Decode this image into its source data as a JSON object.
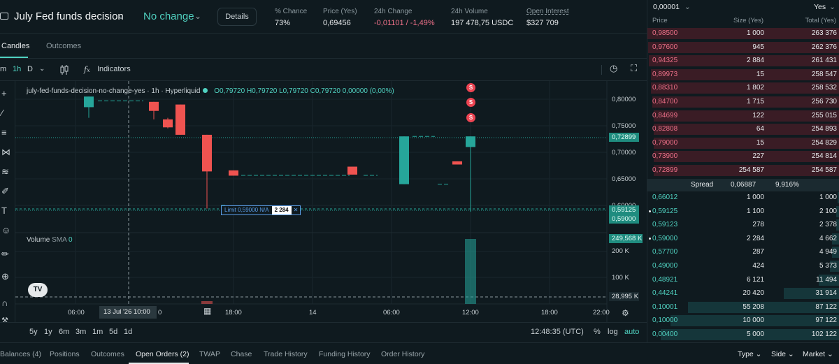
{
  "header": {
    "market_title": "July Fed funds decision",
    "outcome": "No change",
    "details_label": "Details",
    "stats": [
      {
        "label": "% Chance",
        "value": "73%"
      },
      {
        "label": "Price (Yes)",
        "value": "0,69456"
      },
      {
        "label": "24h Change",
        "value": "-0,01101 / -1,49%"
      },
      {
        "label": "24h Volume",
        "value": "197 478,75 USDC"
      },
      {
        "label": "Open Interest",
        "value": "$327 709"
      }
    ]
  },
  "tabs": {
    "candles": "Candles",
    "outcomes": "Outcomes"
  },
  "toolbar": {
    "m": "m",
    "interval": "1h",
    "d": "D",
    "indicators": "Indicators"
  },
  "chart": {
    "legend_symbol": "july-fed-funds-decision-no-change-yes · 1h · Hyperliquid",
    "legend_ohlc": {
      "o": "O0,79720",
      "h": "H0,79720",
      "l": "L0,79720",
      "c": "C0,79720",
      "chg": "0,00000 (0,00%)"
    },
    "volume_label": "Volume",
    "volume_sma": "SMA",
    "volume_sma_val": "0",
    "price_axis": [
      "0,80000",
      "0,75000",
      "0,70000",
      "0,65000",
      "0,60000"
    ],
    "price_tags": {
      "last": "0,72899",
      "bid": "0,59125",
      "limit": "0,59000"
    },
    "volume_axis": [
      "200 K",
      "100 K"
    ],
    "volume_tags": {
      "current": "249,568 K",
      "cross": "28,995 K"
    },
    "time_axis": [
      "06:00",
      "18:00",
      "14",
      "06:00",
      "12:00",
      "18:00",
      "22:00"
    ],
    "time_highlight": "13 Jul '26  10:00",
    "time_partial": "0",
    "limit_order": {
      "label": "Limit 0,59000 N/A",
      "size": "2 284",
      "close": "✕"
    },
    "s_markers": [
      "S",
      "S",
      "S"
    ]
  },
  "range": {
    "buttons": [
      "5y",
      "1y",
      "6m",
      "3m",
      "1m",
      "5d",
      "1d"
    ],
    "clock": "12:48:35 (UTC)",
    "pct": "%",
    "log": "log",
    "auto": "auto"
  },
  "bottom_tabs": {
    "items": [
      "Balances (4)",
      "Positions",
      "Outcomes",
      "Open Orders (2)",
      "TWAP",
      "Chase",
      "Trade History",
      "Funding History",
      "Order History"
    ],
    "filters": [
      "Type",
      "Side",
      "Market"
    ]
  },
  "orderbook": {
    "tick": "0,00001",
    "side": "Yes",
    "headers": {
      "price": "Price",
      "size": "Size (Yes)",
      "total": "Total (Yes)"
    },
    "asks": [
      {
        "p": "0,98500",
        "s": "1 000",
        "t": "263 376",
        "depth": 1.0
      },
      {
        "p": "0,97600",
        "s": "945",
        "t": "262 376",
        "depth": 0.996
      },
      {
        "p": "0,94325",
        "s": "2 884",
        "t": "261 431",
        "depth": 0.993
      },
      {
        "p": "0,89973",
        "s": "15",
        "t": "258 547",
        "depth": 0.982
      },
      {
        "p": "0,88310",
        "s": "1 802",
        "t": "258 532",
        "depth": 0.982
      },
      {
        "p": "0,84700",
        "s": "1 715",
        "t": "256 730",
        "depth": 0.975
      },
      {
        "p": "0,84699",
        "s": "122",
        "t": "255 015",
        "depth": 0.968
      },
      {
        "p": "0,82808",
        "s": "64",
        "t": "254 893",
        "depth": 0.968
      },
      {
        "p": "0,79000",
        "s": "15",
        "t": "254 829",
        "depth": 0.968
      },
      {
        "p": "0,73900",
        "s": "227",
        "t": "254 814",
        "depth": 0.967
      },
      {
        "p": "0,72899",
        "s": "254 587",
        "t": "254 587",
        "depth": 0.967
      }
    ],
    "spread": {
      "label": "Spread",
      "value": "0,06887",
      "pct": "9,916%"
    },
    "bids": [
      {
        "p": "0,66012",
        "s": "1 000",
        "t": "1 000",
        "depth": 0.01,
        "dot": false
      },
      {
        "p": "0,59125",
        "s": "1 100",
        "t": "2 100",
        "depth": 0.02,
        "dot": true
      },
      {
        "p": "0,59123",
        "s": "278",
        "t": "2 378",
        "depth": 0.02,
        "dot": false
      },
      {
        "p": "0,59000",
        "s": "2 284",
        "t": "4 662",
        "depth": 0.04,
        "dot": true
      },
      {
        "p": "0,57700",
        "s": "287",
        "t": "4 949",
        "depth": 0.04,
        "dot": false
      },
      {
        "p": "0,49000",
        "s": "424",
        "t": "5 373",
        "depth": 0.05,
        "dot": false
      },
      {
        "p": "0,48921",
        "s": "6 121",
        "t": "11 494",
        "depth": 0.11,
        "dot": false
      },
      {
        "p": "0,44241",
        "s": "20 420",
        "t": "31 914",
        "depth": 0.29,
        "dot": false
      },
      {
        "p": "0,10001",
        "s": "55 208",
        "t": "87 122",
        "depth": 0.79,
        "dot": false
      },
      {
        "p": "0,10000",
        "s": "10 000",
        "t": "97 122",
        "depth": 0.88,
        "dot": false
      },
      {
        "p": "0,00400",
        "s": "5 000",
        "t": "102 122",
        "depth": 0.93,
        "dot": false
      }
    ]
  },
  "colors": {
    "up": "#26a69a",
    "down": "#ef5350",
    "accent": "#50d2c1",
    "ask": "#ed7088"
  }
}
